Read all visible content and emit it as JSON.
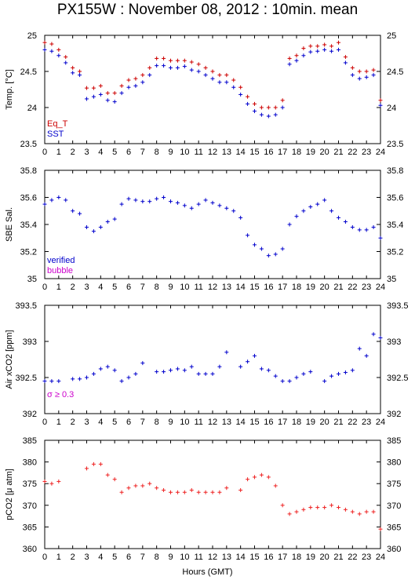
{
  "title": "PX155W : November 08, 2012 : 10min. mean",
  "xlabel": "Hours (GMT)",
  "xticks": [
    "0",
    "1",
    "2",
    "3",
    "4",
    "5",
    "6",
    "7",
    "8",
    "9",
    "10",
    "11",
    "12",
    "13",
    "14",
    "15",
    "16",
    "17",
    "18",
    "19",
    "20",
    "21",
    "22",
    "23",
    "24"
  ],
  "chart_data": [
    {
      "type": "scatter",
      "ylabel": "Temp. [°C]",
      "ylim": [
        23.5,
        25
      ],
      "yticks": [
        "23.5",
        "24",
        "24.5",
        "25"
      ],
      "legend": [
        "Eq_T",
        "SST"
      ],
      "legend_placement": "bottom-left",
      "series": [
        {
          "name": "Eq_T",
          "color": "#cc0000",
          "x": [
            0.0,
            0.5,
            1.0,
            1.5,
            2.0,
            2.5,
            3.0,
            3.5,
            4.0,
            4.5,
            5.0,
            5.5,
            6.0,
            6.5,
            7.0,
            7.5,
            8.0,
            8.5,
            9.0,
            9.5,
            10.0,
            10.5,
            11.0,
            11.5,
            12.0,
            12.5,
            13.0,
            13.5,
            14.0,
            14.5,
            15.0,
            15.5,
            16.0,
            16.5,
            17.0,
            17.5,
            18.0,
            18.5,
            19.0,
            19.5,
            20.0,
            20.5,
            21.0,
            21.5,
            22.0,
            22.5,
            23.0,
            23.5,
            24.0
          ],
          "y": [
            24.9,
            24.88,
            24.8,
            24.7,
            24.55,
            24.5,
            24.27,
            24.27,
            24.3,
            24.2,
            24.2,
            24.3,
            24.38,
            24.4,
            24.45,
            24.55,
            24.68,
            24.68,
            24.65,
            24.65,
            24.65,
            24.63,
            24.6,
            24.55,
            24.5,
            24.45,
            24.45,
            24.38,
            24.28,
            24.15,
            24.05,
            24.0,
            24.0,
            24.0,
            24.1,
            24.68,
            24.72,
            24.82,
            24.85,
            24.85,
            24.87,
            24.85,
            24.9,
            24.7,
            24.55,
            24.5,
            24.5,
            24.52,
            24.1
          ]
        },
        {
          "name": "SST",
          "color": "#0000cc",
          "x": [
            0.0,
            0.5,
            1.0,
            1.5,
            2.0,
            2.5,
            3.0,
            3.5,
            4.0,
            4.5,
            5.0,
            5.5,
            6.0,
            6.5,
            7.0,
            7.5,
            8.0,
            8.5,
            9.0,
            9.5,
            10.0,
            10.5,
            11.0,
            11.5,
            12.0,
            12.5,
            13.0,
            13.5,
            14.0,
            14.5,
            15.0,
            15.5,
            16.0,
            16.5,
            17.0,
            17.5,
            18.0,
            18.5,
            19.0,
            19.5,
            20.0,
            20.5,
            21.0,
            21.5,
            22.0,
            22.5,
            23.0,
            23.5,
            24.0
          ],
          "y": [
            24.8,
            24.78,
            24.72,
            24.62,
            24.48,
            24.45,
            24.12,
            24.15,
            24.18,
            24.1,
            24.08,
            24.2,
            24.28,
            24.3,
            24.35,
            24.45,
            24.58,
            24.58,
            24.55,
            24.55,
            24.57,
            24.52,
            24.5,
            24.45,
            24.4,
            24.35,
            24.35,
            24.28,
            24.18,
            24.05,
            23.95,
            23.9,
            23.88,
            23.9,
            24.0,
            24.6,
            24.65,
            24.72,
            24.77,
            24.78,
            24.8,
            24.78,
            24.8,
            24.62,
            24.45,
            24.4,
            24.42,
            24.45,
            24.03
          ]
        }
      ]
    },
    {
      "type": "scatter",
      "ylabel": "SBE Sal.",
      "ylim": [
        35,
        35.8
      ],
      "yticks": [
        "35",
        "35.2",
        "35.4",
        "35.6",
        "35.8"
      ],
      "legend": [
        "verified",
        "bubble"
      ],
      "legend_placement": "bottom-left",
      "series": [
        {
          "name": "verified",
          "color": "#0000cc",
          "x": [
            0.0,
            0.5,
            1.0,
            1.5,
            2.0,
            2.5,
            3.0,
            3.5,
            4.0,
            4.5,
            5.0,
            5.5,
            6.0,
            6.5,
            7.0,
            7.5,
            8.0,
            8.5,
            9.0,
            9.5,
            10.0,
            10.5,
            11.0,
            11.5,
            12.0,
            12.5,
            13.0,
            13.5,
            14.0,
            14.5,
            15.0,
            15.5,
            16.0,
            16.5,
            17.0,
            17.5,
            18.0,
            18.5,
            19.0,
            19.5,
            20.0,
            20.5,
            21.0,
            21.5,
            22.0,
            22.5,
            23.0,
            23.5,
            24.0
          ],
          "y": [
            35.55,
            35.58,
            35.6,
            35.58,
            35.5,
            35.48,
            35.38,
            35.35,
            35.38,
            35.42,
            35.44,
            35.55,
            35.59,
            35.58,
            35.57,
            35.57,
            35.59,
            35.6,
            35.57,
            35.56,
            35.54,
            35.52,
            35.55,
            35.58,
            35.56,
            35.54,
            35.52,
            35.5,
            35.45,
            35.32,
            35.25,
            35.22,
            35.17,
            35.18,
            35.22,
            35.4,
            35.46,
            35.5,
            35.53,
            35.55,
            35.58,
            35.5,
            35.45,
            35.42,
            35.38,
            35.36,
            35.36,
            35.38,
            35.3
          ]
        }
      ]
    },
    {
      "type": "scatter",
      "ylabel": "Air xCO2 [ppm]",
      "ylim": [
        392,
        393.5
      ],
      "yticks": [
        "392",
        "392.5",
        "393",
        "393.5"
      ],
      "annotation": "σ ≥ 0.3",
      "series": [
        {
          "color": "#0000cc",
          "x": [
            0.0,
            0.5,
            1.0,
            2.0,
            2.5,
            3.0,
            3.5,
            4.0,
            4.5,
            5.0,
            5.5,
            6.0,
            6.5,
            7.0,
            8.0,
            8.5,
            9.0,
            9.5,
            10.0,
            10.5,
            11.0,
            11.5,
            12.0,
            12.5,
            13.0,
            14.0,
            14.5,
            15.0,
            15.5,
            16.0,
            16.5,
            17.0,
            17.5,
            18.0,
            18.5,
            19.0,
            20.0,
            20.5,
            21.0,
            21.5,
            22.0,
            22.5,
            23.0,
            23.5,
            24.0
          ],
          "y": [
            392.45,
            392.45,
            392.45,
            392.48,
            392.48,
            392.5,
            392.55,
            392.62,
            392.65,
            392.6,
            392.45,
            392.5,
            392.55,
            392.7,
            392.58,
            392.58,
            392.6,
            392.62,
            392.6,
            392.65,
            392.55,
            392.55,
            392.55,
            392.65,
            392.85,
            392.65,
            392.72,
            392.8,
            392.62,
            392.6,
            392.52,
            392.45,
            392.45,
            392.5,
            392.55,
            392.58,
            392.45,
            392.52,
            392.55,
            392.57,
            392.6,
            392.9,
            392.8,
            393.1,
            393.05
          ]
        }
      ]
    },
    {
      "type": "scatter",
      "ylabel": "pCO2 [μ atm]",
      "ylim": [
        360,
        385
      ],
      "yticks": [
        "360",
        "365",
        "370",
        "375",
        "380",
        "385"
      ],
      "series": [
        {
          "color": "#ee2222",
          "x": [
            0.0,
            0.5,
            1.0,
            3.0,
            3.5,
            4.0,
            4.5,
            5.0,
            5.5,
            6.0,
            6.5,
            7.0,
            7.5,
            8.0,
            8.5,
            9.0,
            9.5,
            10.0,
            10.5,
            11.0,
            11.5,
            12.0,
            12.5,
            13.0,
            14.0,
            14.5,
            15.0,
            15.5,
            16.0,
            16.5,
            17.0,
            17.5,
            18.0,
            18.5,
            19.0,
            19.5,
            20.0,
            20.5,
            21.0,
            21.5,
            22.0,
            22.5,
            23.0,
            23.5,
            24.0
          ],
          "y": [
            375.5,
            375.0,
            375.5,
            378.5,
            379.5,
            379.5,
            377.0,
            376.0,
            373.0,
            374.0,
            374.5,
            374.5,
            375.0,
            374.0,
            373.5,
            373.0,
            373.0,
            373.0,
            373.5,
            373.0,
            373.0,
            373.0,
            373.0,
            374.0,
            373.5,
            376.0,
            376.5,
            377.0,
            376.5,
            374.5,
            370.0,
            368.0,
            368.5,
            369.0,
            369.5,
            369.5,
            369.5,
            370.0,
            369.5,
            369.0,
            368.5,
            368.0,
            368.5,
            368.5,
            364.5
          ]
        }
      ]
    }
  ]
}
